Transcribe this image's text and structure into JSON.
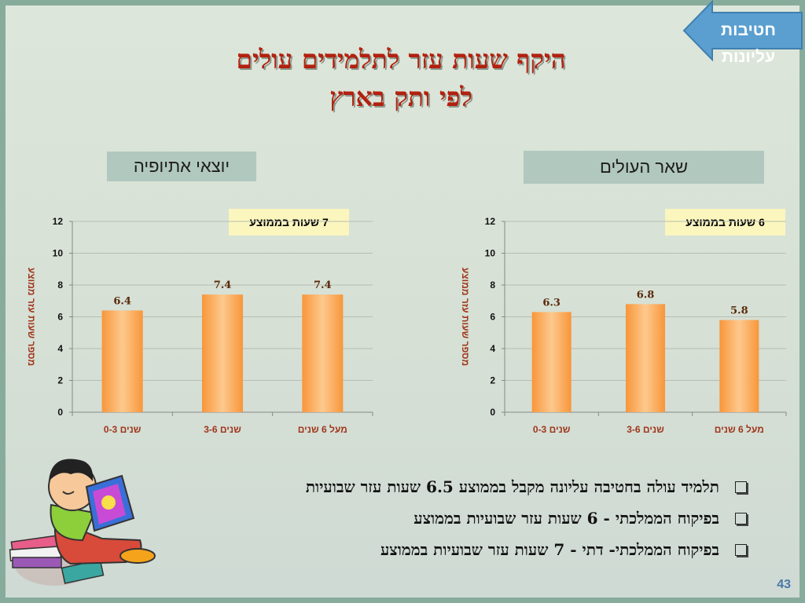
{
  "header": {
    "nav_label": "חטיבות עליונות",
    "title_line1": "היקף שעות עזר לתלמידים עולים",
    "title_line2": "לפי ותק בארץ"
  },
  "colors": {
    "title": "#b3200f",
    "bar_fill": "#fbb26a",
    "axis_label": "#a0361b",
    "nav_arrow": "#5a9fd0",
    "page_number": "#4a78a8"
  },
  "sections": {
    "left_label": "יוצאי אתיופיה",
    "right_label": "שאר העולים",
    "left_average": "7 שעות בממוצע",
    "right_average": "6 שעות בממוצע"
  },
  "chart_data": [
    {
      "type": "bar",
      "categories": [
        "שנים 0-3",
        "שנים 3-6",
        "מעל 6 שנים"
      ],
      "values": [
        6.4,
        7.4,
        7.4
      ],
      "ylabel": "מספר שעות עזר ממוצע",
      "ylim": [
        0,
        12
      ],
      "yticks": [
        0,
        2,
        4,
        6,
        8,
        10,
        12
      ],
      "grid": true
    },
    {
      "type": "bar",
      "categories": [
        "שנים 0-3",
        "שנים 3-6",
        "מעל 6 שנים"
      ],
      "values": [
        6.3,
        6.8,
        5.8
      ],
      "ylabel": "מספר שעות עזר ממוצע",
      "ylim": [
        0,
        12
      ],
      "yticks": [
        0,
        2,
        4,
        6,
        8,
        10,
        12
      ],
      "grid": true
    }
  ],
  "bullets": [
    "תלמיד עולה בחטיבה עליונה מקבל בממוצע 6.5 שעות עזר שבועיות",
    "בפיקוח הממלכתי - 6 שעות עזר שבועיות בממוצע",
    "בפיקוח הממלכתי- דתי - 7 שעות עזר שבועיות בממוצע"
  ],
  "footer": {
    "page_number": "43"
  }
}
